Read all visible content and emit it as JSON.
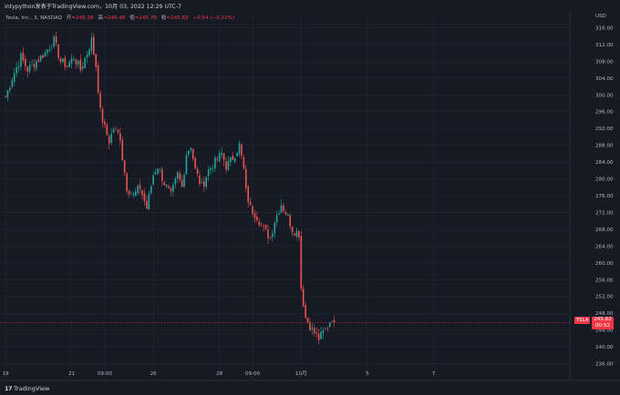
{
  "header": {
    "title": "intypython发表于TradingView.com，10月 03, 2022 12:29 UTC-7"
  },
  "legend": {
    "symbol_desc": "Tesla, Inc., 3, NASDAQ",
    "open_label": "开",
    "open_value": "=246.38",
    "high_label": "高",
    "high_value": "=246.48",
    "low_label": "低",
    "low_value": "=245.79",
    "close_label": "收",
    "close_value": "=245.82",
    "change_value": "−0.54 (−0.22%)"
  },
  "currency_label": "USD",
  "price_badge": {
    "symbol": "TSLA",
    "price": "245.82",
    "countdown": "00:52"
  },
  "footer": {
    "logo_mark": "17",
    "logo_text": "TradingView"
  },
  "colors": {
    "background": "#161a25",
    "up": "#26a69a",
    "down": "#ef5350",
    "grid": "#232733",
    "price_line": "#f23645"
  },
  "chart_data": {
    "type": "candlestick",
    "title": "",
    "xlabel": "",
    "ylabel": "",
    "ylim": [
      232,
      320
    ],
    "y_ticks": [
      236,
      240,
      244,
      248,
      252,
      256,
      260,
      264,
      268,
      272,
      276,
      280,
      284,
      288,
      292,
      296,
      300,
      304,
      308,
      312,
      316
    ],
    "x_ticks": [
      {
        "label": "19",
        "index": 0
      },
      {
        "label": "21",
        "index": 30
      },
      {
        "label": "09:00",
        "index": 45
      },
      {
        "label": "26",
        "index": 67
      },
      {
        "label": "28",
        "index": 97
      },
      {
        "label": "09:00",
        "index": 112
      },
      {
        "label": "10月",
        "index": 134
      },
      {
        "label": "5",
        "index": 164
      },
      {
        "label": "7",
        "index": 194
      }
    ],
    "last_price": 245.82,
    "anchors": [
      [
        0,
        299.5
      ],
      [
        3,
        304
      ],
      [
        7,
        309
      ],
      [
        10,
        306
      ],
      [
        14,
        308
      ],
      [
        18,
        310
      ],
      [
        22,
        313
      ],
      [
        25,
        308
      ],
      [
        28,
        307
      ],
      [
        31,
        309
      ],
      [
        34,
        306
      ],
      [
        37,
        310
      ],
      [
        39,
        313
      ],
      [
        41,
        307
      ],
      [
        43,
        296
      ],
      [
        45,
        292
      ],
      [
        47,
        289
      ],
      [
        49,
        292
      ],
      [
        52,
        290
      ],
      [
        53,
        285
      ],
      [
        55,
        278
      ],
      [
        58,
        276
      ],
      [
        61,
        278
      ],
      [
        64,
        273
      ],
      [
        67,
        281
      ],
      [
        69,
        283
      ],
      [
        72,
        279
      ],
      [
        75,
        276
      ],
      [
        78,
        281
      ],
      [
        80,
        278
      ],
      [
        82,
        286
      ],
      [
        84,
        288
      ],
      [
        86,
        282
      ],
      [
        89,
        278
      ],
      [
        92,
        282
      ],
      [
        95,
        284
      ],
      [
        98,
        286
      ],
      [
        100,
        283
      ],
      [
        103,
        285
      ],
      [
        106,
        288
      ],
      [
        108,
        282
      ],
      [
        109,
        277
      ],
      [
        111,
        273
      ],
      [
        114,
        271
      ],
      [
        117,
        268
      ],
      [
        120,
        266
      ],
      [
        122,
        270
      ],
      [
        125,
        274
      ],
      [
        128,
        271
      ],
      [
        130,
        268
      ],
      [
        133,
        267
      ],
      [
        134,
        254
      ],
      [
        136,
        247
      ],
      [
        139,
        244
      ],
      [
        142,
        242
      ],
      [
        145,
        244
      ],
      [
        148,
        247
      ],
      [
        149,
        245.82
      ]
    ]
  }
}
